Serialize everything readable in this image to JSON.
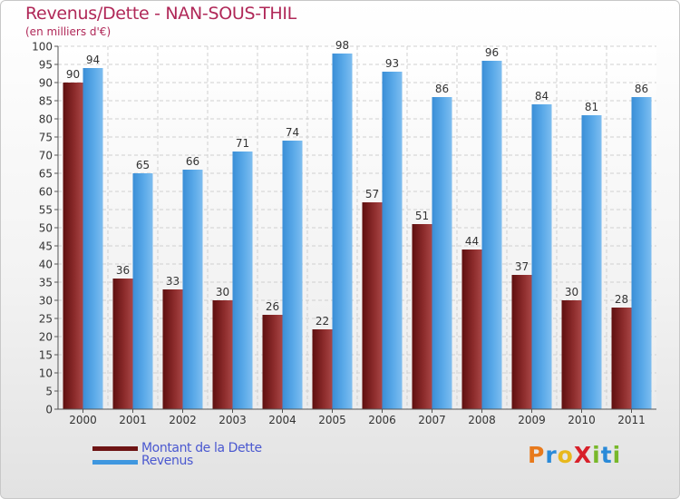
{
  "title": "Revenus/Dette - NAN-SOUS-THIL",
  "subtitle": "(en milliers d'€)",
  "colors": {
    "title": "#b02858",
    "debt": "#7a1a1a",
    "revenue": "#4a9de0",
    "legend_text": "#4a58d0"
  },
  "legend": {
    "debt_label": "Montant de la Dette",
    "revenue_label": "Revenus"
  },
  "logo": {
    "text": "ProXiti",
    "letters": [
      "P",
      "r",
      "o",
      "X",
      "i",
      "t",
      "i"
    ]
  },
  "chart_data": {
    "type": "bar",
    "categories": [
      "2000",
      "2001",
      "2002",
      "2003",
      "2004",
      "2005",
      "2006",
      "2007",
      "2008",
      "2009",
      "2010",
      "2011"
    ],
    "series": [
      {
        "name": "Montant de la Dette",
        "color": "#7a1a1a",
        "values": [
          90,
          36,
          33,
          30,
          26,
          22,
          57,
          51,
          44,
          37,
          30,
          28
        ]
      },
      {
        "name": "Revenus",
        "color": "#4a9de0",
        "values": [
          94,
          65,
          66,
          71,
          74,
          98,
          93,
          86,
          96,
          84,
          81,
          86
        ]
      }
    ],
    "ylim": [
      0,
      100
    ],
    "ytick_step": 5,
    "grid": true,
    "legend_position": "bottom-left"
  }
}
